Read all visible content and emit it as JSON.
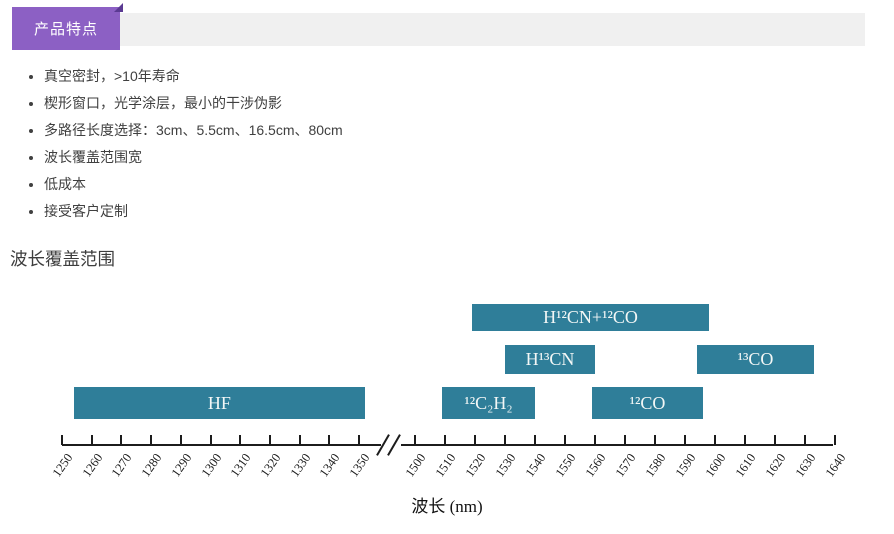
{
  "header": {
    "tab_label": "产品特点",
    "tab_color": "#8c60c4",
    "fold_color": "#5b3a92",
    "strip_color": "#f0f0f0"
  },
  "features": {
    "items": [
      "真空密封，>10年寿命",
      "楔形窗口，光学涂层，最小的干涉伪影",
      "多路径长度选择：3cm、5.5cm、16.5cm、80cm",
      "波长覆盖范围宽",
      "低成本",
      "接受客户定制"
    ]
  },
  "section": {
    "title": "波长覆盖范围"
  },
  "chart_data": {
    "type": "bar",
    "subtype": "horizontal-wavelength-range",
    "title": "波长覆盖范围",
    "xlabel": "波长 (nm)",
    "bar_color": "#2f7e99",
    "bar_label_color": "#f3f7f6",
    "axis_color": "#1c1c1c",
    "axis_break_between": [
      1350,
      1500
    ],
    "x_axis": {
      "unit": "nm",
      "segments": [
        {
          "range": [
            1250,
            1350
          ],
          "ticks": [
            1250,
            1260,
            1270,
            1280,
            1290,
            1300,
            1310,
            1320,
            1330,
            1340,
            1350
          ]
        },
        {
          "range": [
            1500,
            1640
          ],
          "ticks": [
            1500,
            1510,
            1520,
            1530,
            1540,
            1550,
            1560,
            1570,
            1580,
            1590,
            1600,
            1610,
            1620,
            1630,
            1640
          ]
        }
      ]
    },
    "bars": [
      {
        "label": "H¹²CN+¹²CO",
        "row": 1,
        "from": 1519,
        "to": 1598
      },
      {
        "label": "H¹³CN",
        "row": 2,
        "from": 1530,
        "to": 1560
      },
      {
        "label": "¹³CO",
        "row": 2,
        "from": 1594,
        "to": 1633
      },
      {
        "label": "HF",
        "row": 3,
        "from": 1254,
        "to": 1352
      },
      {
        "label": "¹²C₂H₂",
        "row": 3,
        "from": 1509,
        "to": 1540
      },
      {
        "label": "¹²CO",
        "row": 3,
        "from": 1559,
        "to": 1596
      }
    ]
  }
}
